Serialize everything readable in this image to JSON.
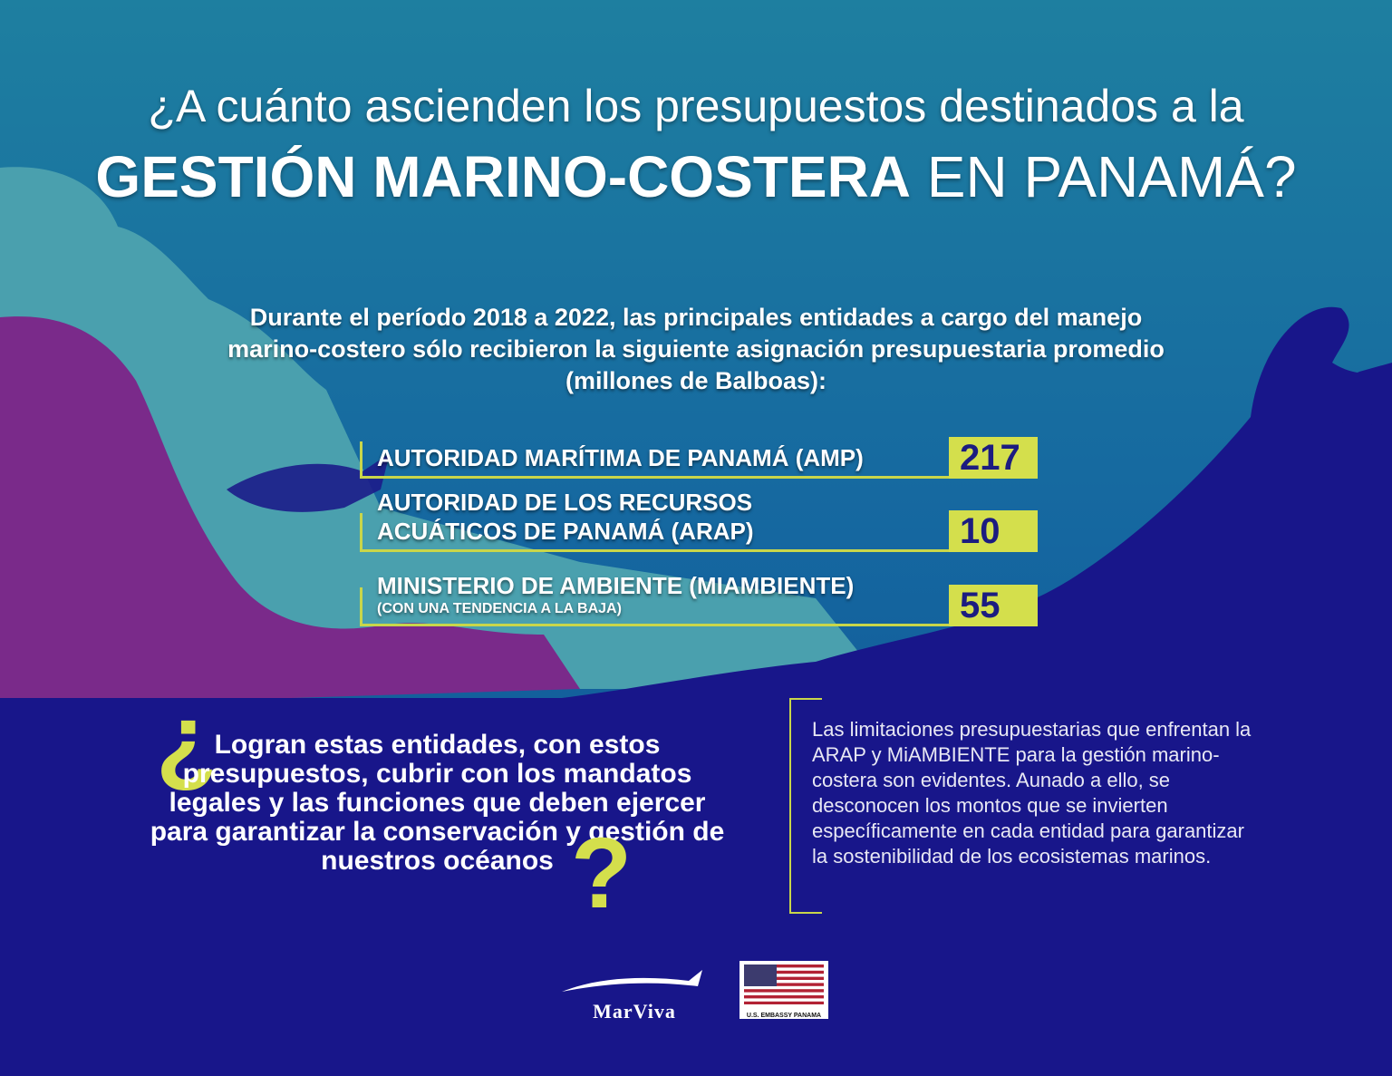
{
  "title": {
    "line1": "¿A cuánto ascienden los  presupuestos destinados a la",
    "line2_bold": "GESTIÓN MARINO-COSTERA",
    "line2_rest": "EN PANAMÁ?"
  },
  "intro": "Durante el período 2018 a 2022, las principales entidades a cargo del manejo marino-costero sólo recibieron la siguiente asignación presupuestaria promedio (millones de Balboas):",
  "entities": [
    {
      "name": "AUTORIDAD MARÍTIMA DE PANAMÁ (AMP)",
      "amount": 217
    },
    {
      "name": "AUTORIDAD DE LOS RECURSOS ACUÁTICOS DE PANAMÁ (ARAP)",
      "amount": 10
    },
    {
      "name": "MINISTERIO DE AMBIENTE (MIAMBIENTE)",
      "note": "(CON UNA TENDENCIA A LA BAJA)",
      "amount": 55
    }
  ],
  "question": {
    "open": "¿",
    "text": "Logran estas entidades, con estos presupuestos, cubrir con los mandatos legales y las funciones que deben ejercer para garantizar la conservación y gestión de nuestros océanos",
    "close": "?"
  },
  "note": "Las limitaciones presupuestarias que enfrentan la ARAP y MiAMBIENTE para la gestión marino-costera son evidentes. Aunado a ello, se desconocen los montos que se invierten específicamente en cada entidad para garantizar la sostenibilidad de los ecosistemas marinos.",
  "logos": {
    "marviva": "MarViva",
    "embassy": "U.S. EMBASSY PANAMA"
  }
}
